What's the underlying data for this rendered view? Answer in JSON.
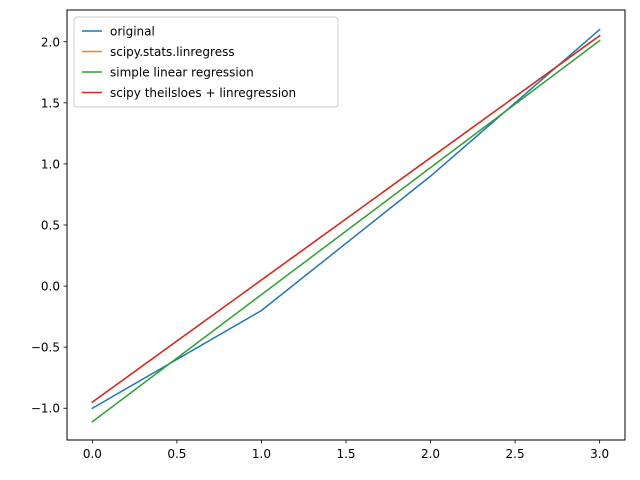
{
  "chart_data": {
    "type": "line",
    "title": "",
    "xlabel": "",
    "ylabel": "",
    "xlim": [
      -0.15,
      3.15
    ],
    "ylim": [
      -1.26,
      2.26
    ],
    "x_ticks": [
      0.0,
      0.5,
      1.0,
      1.5,
      2.0,
      2.5,
      3.0
    ],
    "x_tick_labels": [
      "0.0",
      "0.5",
      "1.0",
      "1.5",
      "2.0",
      "2.5",
      "3.0"
    ],
    "y_ticks": [
      -1.0,
      -0.5,
      0.0,
      0.5,
      1.0,
      1.5,
      2.0
    ],
    "y_tick_labels": [
      "−1.0",
      "−0.5",
      "0.0",
      "0.5",
      "1.0",
      "1.5",
      "2.0"
    ],
    "grid": false,
    "legend_position": "top-left",
    "series": [
      {
        "name": "original",
        "color": "#1f77b4",
        "x": [
          0,
          1,
          2,
          3
        ],
        "y": [
          -1.0,
          -0.2,
          0.9,
          2.1
        ]
      },
      {
        "name": "scipy.stats.linregress",
        "color": "#ff7f0e",
        "x": [
          0,
          3
        ],
        "y": [
          -0.95,
          2.05
        ]
      },
      {
        "name": "simple linear regression",
        "color": "#2ca02c",
        "x": [
          0,
          3
        ],
        "y": [
          -1.11,
          2.01
        ]
      },
      {
        "name": "scipy theilsloes + linregression",
        "color": "#d62728",
        "x": [
          0,
          3
        ],
        "y": [
          -0.95,
          2.05
        ]
      }
    ]
  }
}
